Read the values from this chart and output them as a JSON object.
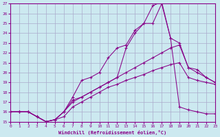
{
  "xlabel": "Windchill (Refroidissement éolien,°C)",
  "xlim": [
    0,
    23
  ],
  "ylim": [
    15,
    27
  ],
  "yticks": [
    15,
    16,
    17,
    18,
    19,
    20,
    21,
    22,
    23,
    24,
    25,
    26,
    27
  ],
  "xticks": [
    0,
    1,
    2,
    3,
    4,
    5,
    6,
    7,
    8,
    9,
    10,
    11,
    12,
    13,
    14,
    15,
    16,
    17,
    18,
    19,
    20,
    21,
    22,
    23
  ],
  "bg_color": "#cce9f0",
  "grid_color": "#aaaacc",
  "line_color": "#880088",
  "line1_x": [
    0,
    1,
    2,
    3,
    4,
    5,
    6,
    7,
    8,
    9,
    10,
    11,
    12,
    13,
    14,
    15,
    16,
    17,
    18,
    19,
    20,
    21,
    22,
    23
  ],
  "line1_y": [
    16,
    16,
    16,
    15.5,
    15,
    15.2,
    15.5,
    16.5,
    17.0,
    17.5,
    18.0,
    18.5,
    18.8,
    19.2,
    19.5,
    19.8,
    20.2,
    20.5,
    20.8,
    21.0,
    19.5,
    19.2,
    19.0,
    18.8
  ],
  "line2_x": [
    0,
    1,
    2,
    3,
    4,
    5,
    6,
    7,
    8,
    9,
    10,
    11,
    12,
    13,
    14,
    15,
    16,
    17,
    18,
    19,
    20,
    21,
    22,
    23
  ],
  "line2_y": [
    16,
    16,
    16,
    15.5,
    15,
    15.2,
    16.0,
    17.2,
    17.5,
    18.0,
    18.5,
    19.0,
    19.5,
    22.5,
    24.0,
    25.0,
    26.8,
    27.2,
    23.5,
    16.5,
    16.2,
    16.0,
    15.8,
    15.8
  ],
  "line3_x": [
    0,
    1,
    2,
    3,
    4,
    5,
    6,
    7,
    8,
    9,
    10,
    11,
    12,
    13,
    14,
    15,
    16,
    17,
    18,
    19,
    20,
    21,
    22,
    23
  ],
  "line3_y": [
    16,
    16,
    16,
    15.5,
    15,
    15.2,
    16.0,
    17.5,
    19.2,
    19.5,
    20.0,
    21.5,
    22.5,
    22.8,
    24.3,
    25.0,
    25.0,
    27.0,
    23.5,
    23.0,
    20.5,
    20.3,
    19.5,
    19.0
  ],
  "line4_x": [
    0,
    1,
    2,
    3,
    4,
    5,
    6,
    7,
    8,
    9,
    10,
    11,
    12,
    13,
    14,
    15,
    16,
    17,
    18,
    19,
    20,
    21,
    22,
    23
  ],
  "line4_y": [
    16,
    16,
    16,
    15.5,
    15,
    15.2,
    16.0,
    17.0,
    17.5,
    18.0,
    18.5,
    19.0,
    19.5,
    20.0,
    20.5,
    21.0,
    21.5,
    22.0,
    22.5,
    22.8,
    20.5,
    20.0,
    19.5,
    19.0
  ]
}
